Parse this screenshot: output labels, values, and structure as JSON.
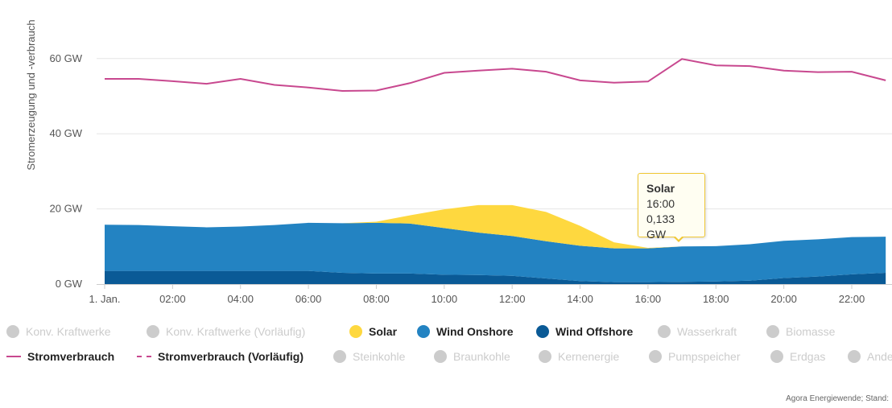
{
  "chart_data": {
    "type": "area",
    "title": "",
    "ylabel": "Stromerzeugung und -verbrauch",
    "xlabel": "",
    "ylim": [
      0,
      70
    ],
    "yticks": [
      0,
      20,
      40,
      60
    ],
    "ytick_labels": [
      "0 GW",
      "20 GW",
      "40 GW",
      "60 GW"
    ],
    "xticks": [
      0,
      2,
      4,
      6,
      8,
      10,
      12,
      14,
      16,
      18,
      20,
      22
    ],
    "xtick_labels": [
      "1. Jan.",
      "02:00",
      "04:00",
      "06:00",
      "08:00",
      "10:00",
      "12:00",
      "14:00",
      "16:00",
      "18:00",
      "20:00",
      "22:00"
    ],
    "x": [
      0,
      1,
      2,
      3,
      4,
      5,
      6,
      7,
      8,
      9,
      10,
      11,
      12,
      13,
      14,
      15,
      16,
      17,
      18,
      19,
      20,
      21,
      22,
      23
    ],
    "grid": true,
    "stacked": true,
    "series": [
      {
        "name": "Wind Offshore",
        "kind": "area",
        "color": "#0a5a96",
        "values": [
          3.5,
          3.5,
          3.5,
          3.5,
          3.5,
          3.5,
          3.5,
          3.0,
          2.8,
          2.8,
          2.5,
          2.4,
          2.2,
          1.5,
          0.8,
          0.5,
          0.5,
          0.6,
          0.7,
          0.9,
          1.6,
          2.0,
          2.6,
          3.0
        ]
      },
      {
        "name": "Wind Onshore",
        "kind": "area",
        "color": "#2383c2",
        "values": [
          12.3,
          12.2,
          11.9,
          11.6,
          11.8,
          12.2,
          12.8,
          13.2,
          13.5,
          13.3,
          12.4,
          11.3,
          10.6,
          9.9,
          9.4,
          9.0,
          9.0,
          9.4,
          9.4,
          9.7,
          9.9,
          9.9,
          9.9,
          9.6
        ]
      },
      {
        "name": "Solar",
        "kind": "area",
        "color": "#fed83f",
        "values": [
          0,
          0,
          0,
          0,
          0,
          0,
          0,
          0,
          0.3,
          2.2,
          5.0,
          7.3,
          8.2,
          7.8,
          5.3,
          1.6,
          0.133,
          0,
          0,
          0,
          0,
          0,
          0,
          0
        ]
      },
      {
        "name": "Stromverbrauch",
        "kind": "line",
        "color": "#c8488f",
        "values": [
          54.6,
          54.6,
          54.0,
          53.3,
          54.6,
          53.0,
          52.3,
          51.4,
          51.5,
          53.5,
          56.2,
          56.8,
          57.3,
          56.5,
          54.2,
          53.6,
          53.9,
          59.9,
          58.2,
          58.0,
          56.8,
          56.4,
          56.5,
          54.2
        ]
      }
    ],
    "legend_position": "bottom"
  },
  "legend": {
    "row1": [
      {
        "label": "Konv. Kraftwerke",
        "state": "inactive",
        "color": "#cccccc",
        "symbol": "dot-icon"
      },
      {
        "label": "Konv. Kraftwerke (Vorläufig)",
        "state": "inactive",
        "color": "#cccccc",
        "symbol": "dot-icon"
      },
      {
        "label": "Solar",
        "state": "active",
        "color": "#fed83f",
        "symbol": "dot-icon"
      },
      {
        "label": "Wind Onshore",
        "state": "active",
        "color": "#2383c2",
        "symbol": "dot-icon"
      },
      {
        "label": "Wind Offshore",
        "state": "active",
        "color": "#0a5a96",
        "symbol": "dot-icon"
      },
      {
        "label": "Wasserkraft",
        "state": "inactive",
        "color": "#cccccc",
        "symbol": "dot-icon"
      },
      {
        "label": "Biomasse",
        "state": "inactive",
        "color": "#cccccc",
        "symbol": "dot-icon"
      }
    ],
    "row2": [
      {
        "label": "Stromverbrauch",
        "state": "active",
        "color": "#c8488f",
        "symbol": "line-icon"
      },
      {
        "label": "Stromverbrauch (Vorläufig)",
        "state": "active",
        "color": "#c8488f",
        "symbol": "dashed-line-icon"
      },
      {
        "label": "Steinkohle",
        "state": "inactive",
        "color": "#cccccc",
        "symbol": "dot-icon"
      },
      {
        "label": "Braunkohle",
        "state": "inactive",
        "color": "#cccccc",
        "symbol": "dot-icon"
      },
      {
        "label": "Kernenergie",
        "state": "inactive",
        "color": "#cccccc",
        "symbol": "dot-icon"
      },
      {
        "label": "Pumpspeicher",
        "state": "inactive",
        "color": "#cccccc",
        "symbol": "dot-icon"
      },
      {
        "label": "Erdgas",
        "state": "inactive",
        "color": "#cccccc",
        "symbol": "dot-icon"
      },
      {
        "label": "Ande",
        "state": "inactive",
        "color": "#cccccc",
        "symbol": "dot-icon"
      }
    ]
  },
  "tooltip": {
    "series": "Solar",
    "time": "16:00",
    "value": "0,133 GW"
  },
  "credits": "Agora Energiewende; Stand:"
}
